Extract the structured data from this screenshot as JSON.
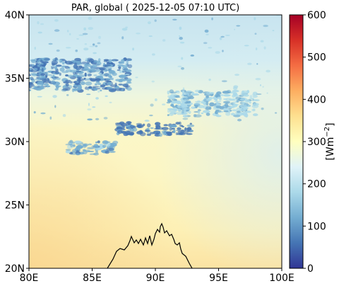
{
  "title": "PAR, global ( 2025-12-05 07:10 UTC)",
  "colorbar": {
    "label_base": "[Wm",
    "label_sup": "−2",
    "label_end": "]",
    "min": 0,
    "max": 600,
    "ticks": [
      "0",
      "100",
      "200",
      "300",
      "400",
      "500",
      "600"
    ],
    "colormap": "RdYlBu_r",
    "stops": [
      "#313695",
      "#4575b4",
      "#74add1",
      "#abd9e9",
      "#e0f3f8",
      "#ffffbf",
      "#fee090",
      "#fdae61",
      "#f46d43",
      "#d73027",
      "#a50026"
    ]
  },
  "map": {
    "lon_range": [
      80,
      100
    ],
    "lat_range": [
      20,
      40
    ],
    "x_ticks": [
      "80E",
      "85E",
      "90E",
      "95E",
      "100E"
    ],
    "y_ticks": [
      "20N",
      "25N",
      "30N",
      "35N",
      "40N"
    ],
    "coastline_color": "#000000"
  },
  "chart_data": {
    "type": "heatmap",
    "title": "PAR, global ( 2025-12-05 07:10 UTC)",
    "xlabel": "",
    "ylabel": "",
    "x_range": [
      80,
      100
    ],
    "y_range": [
      20,
      40
    ],
    "x_ticks": [
      "80E",
      "85E",
      "90E",
      "95E",
      "100E"
    ],
    "y_ticks": [
      "20N",
      "25N",
      "30N",
      "35N",
      "40N"
    ],
    "colorbar_range": [
      0,
      600
    ],
    "colorbar_label": "[Wm⁻²]",
    "field_summary": [
      {
        "region_lat": [
          37,
          40
        ],
        "approx_value": 215
      },
      {
        "region_lat": [
          33,
          37
        ],
        "approx_value": 240
      },
      {
        "region_lat": [
          30,
          33
        ],
        "approx_value": 280
      },
      {
        "region_lat": [
          25,
          30
        ],
        "approx_value": 285
      },
      {
        "region_lat": [
          20,
          25
        ],
        "approx_value": 300
      }
    ],
    "cloud_bands": [
      {
        "lon": [
          80,
          88
        ],
        "lat": [
          34,
          36.5
        ],
        "approx_value": 90
      },
      {
        "lon": [
          87,
          93
        ],
        "lat": [
          30.5,
          31.5
        ],
        "approx_value": 70
      },
      {
        "lon": [
          91,
          98
        ],
        "lat": [
          32,
          34
        ],
        "approx_value": 160
      },
      {
        "lon": [
          83,
          87
        ],
        "lat": [
          29,
          30
        ],
        "approx_value": 120
      }
    ]
  }
}
